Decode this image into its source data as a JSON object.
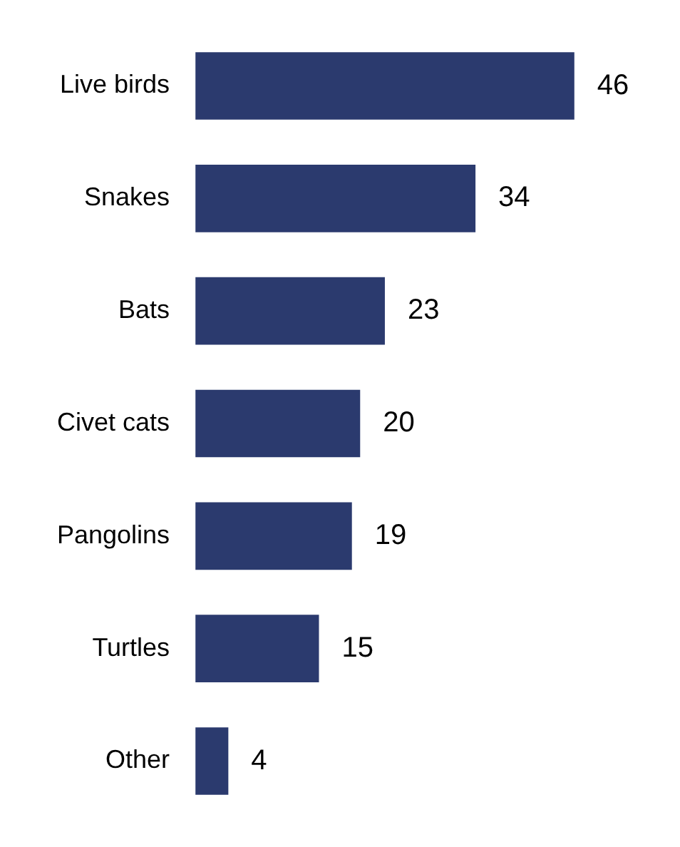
{
  "chart_data": {
    "type": "bar",
    "orientation": "horizontal",
    "categories": [
      "Live birds",
      "Snakes",
      "Bats",
      "Civet cats",
      "Pangolins",
      "Turtles",
      "Other"
    ],
    "values": [
      46,
      34,
      23,
      20,
      19,
      15,
      4
    ],
    "color": "#2b3a6e",
    "tick_labels": "y",
    "data_labels": true
  }
}
